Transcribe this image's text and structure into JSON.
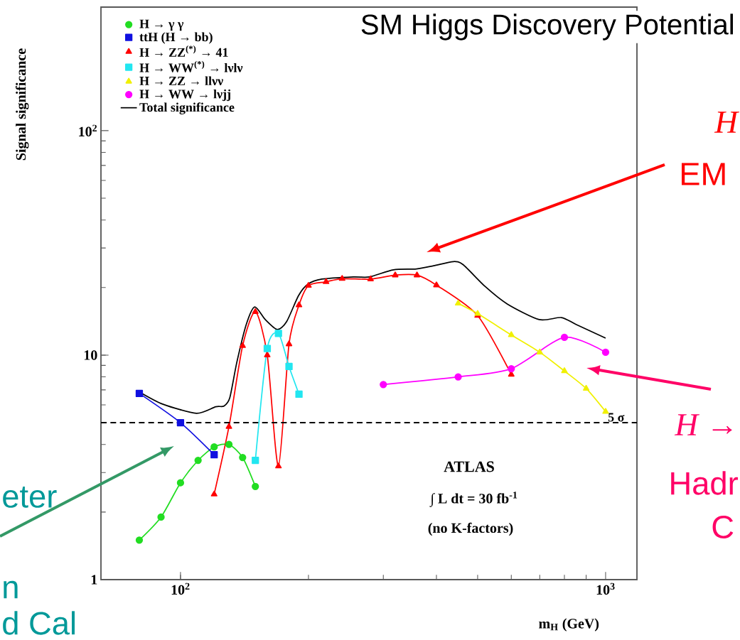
{
  "chart_data": {
    "type": "line",
    "title": "SM Higgs Discovery Potential",
    "xlabel": "m$_{H}$ (GeV)",
    "ylabel": "Signal significance",
    "log": "xy",
    "xlim": [
      65,
      1185
    ],
    "ylim": [
      1,
      355
    ],
    "xticks": [
      {
        "value": 100,
        "label": "10$^{2}$"
      },
      {
        "value": 1000,
        "label": "10$^{3}$"
      }
    ],
    "yticks": [
      1,
      10,
      {
        "value": 100,
        "label": "10$^{2}$"
      }
    ],
    "legend": "top left",
    "grid": false,
    "line_style": "solid",
    "series": [
      {
        "name": "H → γ γ",
        "color": "#22dd22",
        "marker": "circle",
        "x": [
          80,
          90,
          100,
          110,
          120,
          130,
          140,
          150
        ],
        "values": [
          1.5,
          1.9,
          2.7,
          3.4,
          3.9,
          4.0,
          3.5,
          2.6
        ]
      },
      {
        "name": "ttH (H → bb)",
        "color": "#1010e0",
        "marker": "square",
        "x": [
          80,
          100,
          120
        ],
        "values": [
          6.75,
          5.0,
          3.6
        ]
      },
      {
        "name": "H → ZZ$^{(*)}$ → 41",
        "color": "#ff0000",
        "marker": "triangle",
        "x": [
          120,
          130,
          140,
          150,
          160,
          170,
          180,
          190,
          200,
          220,
          240,
          280,
          320,
          360,
          400,
          500,
          600
        ],
        "values": [
          2.4,
          4.8,
          11.0,
          15.6,
          10.0,
          3.2,
          11.2,
          16.7,
          20.4,
          21.2,
          21.9,
          21.8,
          22.7,
          22.7,
          20.5,
          15.0,
          8.2
        ]
      },
      {
        "name": "H → WW$^{(*)}$ → lνlν",
        "color": "#22e6f0",
        "marker": "square",
        "x": [
          150,
          160,
          170,
          180,
          190
        ],
        "values": [
          3.4,
          10.7,
          12.5,
          8.9,
          6.7
        ]
      },
      {
        "name": "H → ZZ → llνν",
        "color": "#f0f000",
        "marker": "triangle-down",
        "x": [
          450,
          500,
          600,
          700,
          800,
          900,
          1000
        ],
        "values": [
          17.0,
          15.3,
          12.3,
          10.3,
          8.5,
          7.1,
          5.6
        ]
      },
      {
        "name": "H → WW → lνjj",
        "color": "#ff00ff",
        "marker": "circle",
        "x": [
          300,
          450,
          600,
          800,
          1000
        ],
        "values": [
          7.4,
          8.0,
          8.7,
          12.0,
          10.3
        ]
      },
      {
        "name": "Total significance",
        "color": "#000000",
        "marker": "none",
        "x": [
          80,
          91,
          109,
          121,
          126.5,
          130.6,
          135.7,
          142.8,
          149.5,
          158.3,
          169,
          177.7,
          189.5,
          199.5,
          215,
          255,
          278,
          317,
          359,
          394,
          438,
          462,
          521,
          587,
          698,
          787,
          852,
          1000
        ],
        "values": [
          6.86,
          6.04,
          5.51,
          5.89,
          5.93,
          6.46,
          9.3,
          13.7,
          16.4,
          14.4,
          13.0,
          14.1,
          18.4,
          20.7,
          21.8,
          22.3,
          22.3,
          24.0,
          24.2,
          25.0,
          26.1,
          25.3,
          20.2,
          16.9,
          14.4,
          14.7,
          13.7,
          11.9
        ]
      }
    ],
    "ref_lines": [
      {
        "axis": "y",
        "value": 5,
        "label": "5 σ",
        "line_style": "dashed",
        "color": "#000000"
      }
    ],
    "annotations": [
      "ATLAS",
      "∫ L dt = 30 fb$^{-1}$",
      "(no K-factors)",
      "H",
      "EM",
      "H →",
      "Hadr",
      "C",
      "eter",
      "n",
      "d Cal"
    ]
  }
}
